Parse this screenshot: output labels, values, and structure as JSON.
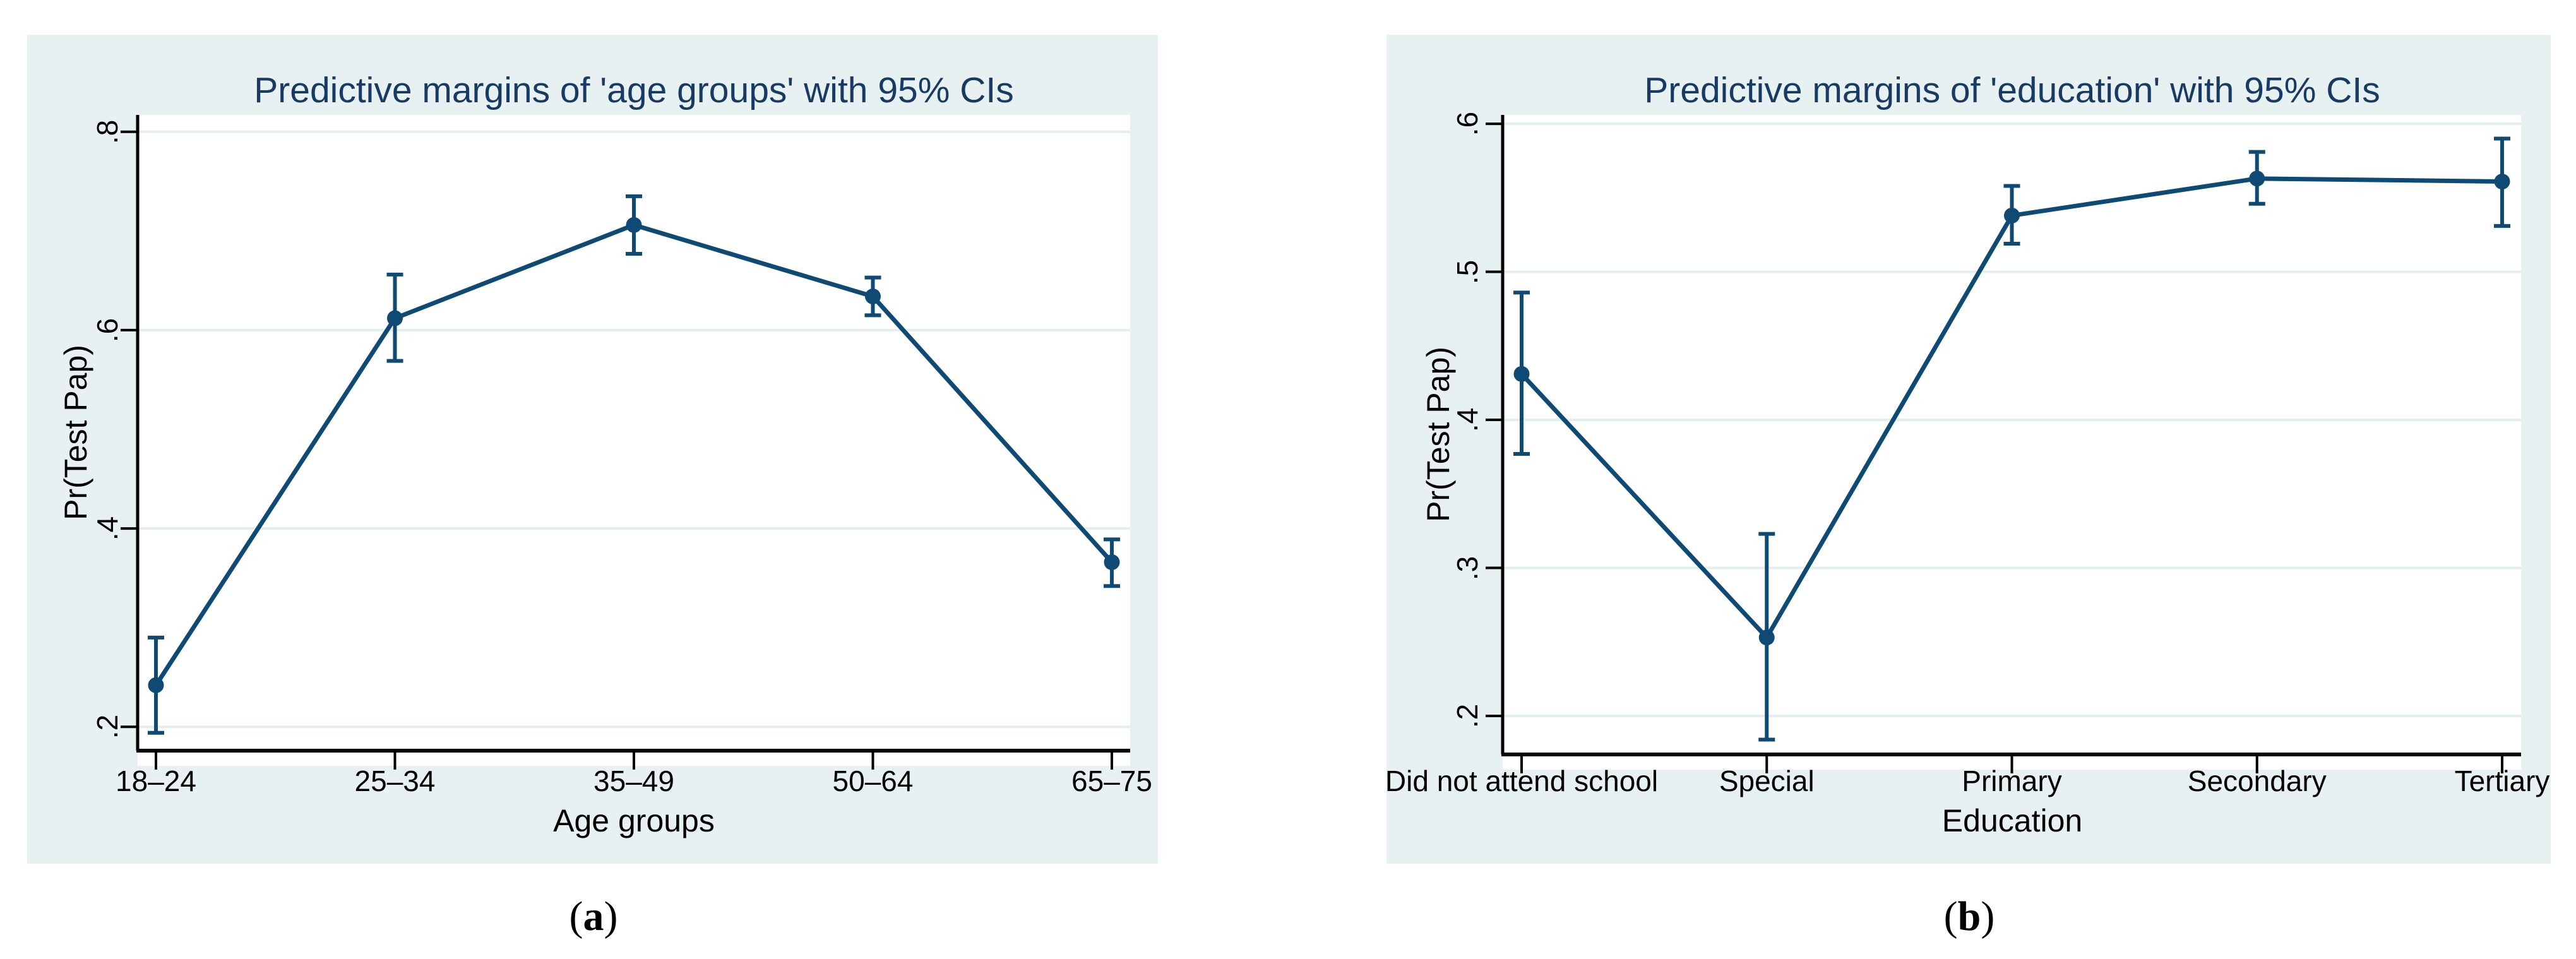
{
  "colors": {
    "line": "#0e4a73",
    "marker": "#0e4a73",
    "error_bar": "#0e4a73",
    "title": "#193b63",
    "panel_background": "#e8f1f2",
    "plot_background": "#ffffff",
    "gridline": "#e3efef",
    "axis": "#000000",
    "page_background": "#ffffff"
  },
  "figure": {
    "captions": [
      {
        "open": "(",
        "letter": "a",
        "close": ")"
      },
      {
        "open": "(",
        "letter": "b",
        "close": ")"
      }
    ]
  },
  "chart_data": [
    {
      "type": "line",
      "title": "Predictive margins of 'age groups' with 95% CIs",
      "xlabel": "Age groups",
      "ylabel": "Pr(Test Pap)",
      "categories": [
        "18–24",
        "25–34",
        "35–49",
        "50–64",
        "65–75"
      ],
      "series": [
        {
          "name": "Predictive margin with 95% CI",
          "values": [
            0.242,
            0.612,
            0.706,
            0.634,
            0.366
          ],
          "ci_low": [
            0.194,
            0.569,
            0.677,
            0.615,
            0.342
          ],
          "ci_high": [
            0.29,
            0.656,
            0.735,
            0.653,
            0.389
          ]
        }
      ],
      "y_ticks": {
        "values": [
          0.2,
          0.4,
          0.6,
          0.8
        ],
        "labels": [
          ".2",
          ".4",
          ".6",
          ".8"
        ]
      },
      "ylim": [
        0.176,
        0.817
      ],
      "grid": true,
      "legend": "none"
    },
    {
      "type": "line",
      "title": "Predictive margins of 'education' with 95% CIs",
      "xlabel": "Education",
      "ylabel": "Pr(Test Pap)",
      "categories": [
        "Did not attend school",
        "Special",
        "Primary",
        "Secondary",
        "Tertiary"
      ],
      "series": [
        {
          "name": "Predictive margin with 95% CI",
          "values": [
            0.431,
            0.253,
            0.538,
            0.563,
            0.561
          ],
          "ci_low": [
            0.377,
            0.184,
            0.519,
            0.546,
            0.531
          ],
          "ci_high": [
            0.486,
            0.323,
            0.558,
            0.581,
            0.59
          ]
        }
      ],
      "y_ticks": {
        "values": [
          0.2,
          0.3,
          0.4,
          0.5,
          0.6
        ],
        "labels": [
          ".2",
          ".3",
          ".4",
          ".5",
          ".6"
        ]
      },
      "ylim": [
        0.174,
        0.606
      ],
      "grid": true,
      "legend": "none"
    }
  ]
}
